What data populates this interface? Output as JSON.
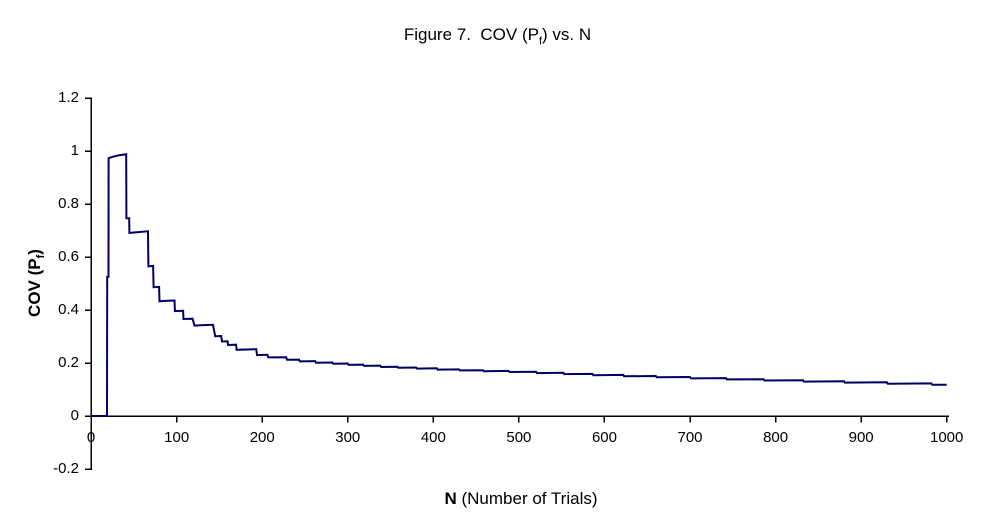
{
  "title": {
    "pre": "Figure 7.  COV (P",
    "sub": "f",
    "post": ") vs. N"
  },
  "y_axis": {
    "label": {
      "pre": "COV (P",
      "sub": "f",
      "post": ")"
    },
    "ticks": [
      "1.2",
      "1",
      "0.8",
      "0.6",
      "0.4",
      "0.2",
      "0",
      "-0.2"
    ],
    "min": -0.2,
    "max": 1.2,
    "step": 0.2
  },
  "x_axis": {
    "label": {
      "bold": "N",
      "rest": " (Number of Trials)"
    },
    "ticks": [
      "0",
      "100",
      "200",
      "300",
      "400",
      "500",
      "600",
      "700",
      "800",
      "900",
      "1000"
    ],
    "min": 0,
    "max": 1000,
    "step": 100
  },
  "colors": {
    "line": "#000066",
    "axis": "#000000",
    "background": "#ffffff",
    "text": "#000000"
  },
  "chart_data": {
    "type": "line",
    "title": "Figure 7.  COV (Pf) vs. N",
    "xlabel": "N (Number of Trials)",
    "ylabel": "COV (Pf)",
    "xlim": [
      0,
      1000
    ],
    "ylim": [
      -0.2,
      1.2
    ],
    "x_tick_step": 100,
    "y_tick_step": 0.2,
    "grid": false,
    "legend": false,
    "series": [
      {
        "name": "COV (Pf)",
        "color": "#000066",
        "points": [
          [
            0,
            0
          ],
          [
            18.6,
            0
          ],
          [
            18.8,
            0.525
          ],
          [
            20.3,
            0.525
          ],
          [
            20.5,
            0.973
          ],
          [
            25,
            0.978
          ],
          [
            33,
            0.984
          ],
          [
            41,
            0.988
          ],
          [
            41.3,
            0.746
          ],
          [
            44.5,
            0.746
          ],
          [
            44.8,
            0.691
          ],
          [
            55,
            0.694
          ],
          [
            66.5,
            0.697
          ],
          [
            67,
            0.565
          ],
          [
            72.5,
            0.566
          ],
          [
            73,
            0.486
          ],
          [
            79.5,
            0.487
          ],
          [
            80,
            0.433
          ],
          [
            89,
            0.435
          ],
          [
            97.5,
            0.436
          ],
          [
            98,
            0.396
          ],
          [
            107.5,
            0.397
          ],
          [
            108,
            0.366
          ],
          [
            118.5,
            0.367
          ],
          [
            121,
            0.341
          ],
          [
            131,
            0.343
          ],
          [
            142.5,
            0.344
          ],
          [
            145,
            0.301
          ],
          [
            152,
            0.302
          ],
          [
            153,
            0.281
          ],
          [
            159.5,
            0.282
          ],
          [
            160,
            0.268
          ],
          [
            169.5,
            0.269
          ],
          [
            170,
            0.25
          ],
          [
            193,
            0.252
          ],
          [
            194,
            0.23
          ],
          [
            206,
            0.231
          ],
          [
            207,
            0.221
          ],
          [
            228,
            0.222
          ],
          [
            229,
            0.212
          ],
          [
            243,
            0.213
          ],
          [
            244,
            0.206
          ],
          [
            262,
            0.207
          ],
          [
            263,
            0.201
          ],
          [
            282,
            0.202
          ],
          [
            283,
            0.197
          ],
          [
            300,
            0.198
          ],
          [
            301,
            0.193
          ],
          [
            318,
            0.194
          ],
          [
            319,
            0.189
          ],
          [
            338,
            0.19
          ],
          [
            339,
            0.185
          ],
          [
            358,
            0.186
          ],
          [
            359,
            0.182
          ],
          [
            380,
            0.183
          ],
          [
            381,
            0.179
          ],
          [
            404,
            0.18
          ],
          [
            405,
            0.175
          ],
          [
            430,
            0.176
          ],
          [
            431,
            0.172
          ],
          [
            458,
            0.173
          ],
          [
            459,
            0.169
          ],
          [
            488,
            0.17
          ],
          [
            489,
            0.166
          ],
          [
            520,
            0.167
          ],
          [
            521,
            0.162
          ],
          [
            552,
            0.163
          ],
          [
            553,
            0.158
          ],
          [
            586,
            0.159
          ],
          [
            587,
            0.154
          ],
          [
            622,
            0.155
          ],
          [
            623,
            0.15
          ],
          [
            660,
            0.151
          ],
          [
            661,
            0.146
          ],
          [
            700,
            0.147
          ],
          [
            701,
            0.142
          ],
          [
            742,
            0.143
          ],
          [
            743,
            0.138
          ],
          [
            786,
            0.139
          ],
          [
            787,
            0.134
          ],
          [
            832,
            0.135
          ],
          [
            833,
            0.13
          ],
          [
            880,
            0.131
          ],
          [
            881,
            0.126
          ],
          [
            930,
            0.127
          ],
          [
            931,
            0.122
          ],
          [
            982,
            0.123
          ],
          [
            983,
            0.118
          ],
          [
            1000,
            0.118
          ]
        ]
      }
    ]
  }
}
